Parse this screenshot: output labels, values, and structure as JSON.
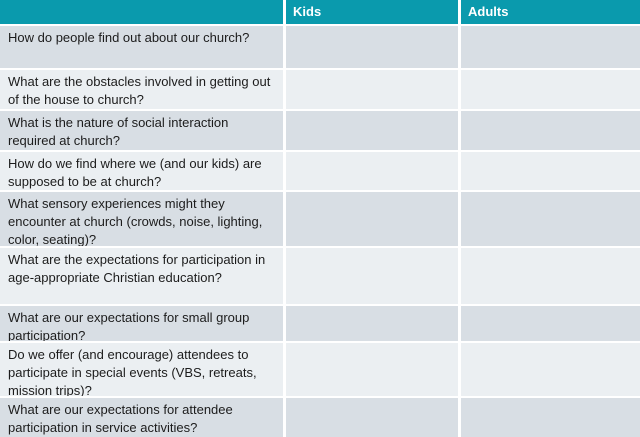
{
  "table": {
    "columns": [
      {
        "label": ""
      },
      {
        "label": "Kids"
      },
      {
        "label": "Adults"
      }
    ],
    "rows": [
      {
        "question": "How do people find out about our church?",
        "kids": "",
        "adults": ""
      },
      {
        "question": "What are the obstacles involved in getting out of the house to church?",
        "kids": "",
        "adults": ""
      },
      {
        "question": "What is the nature of social interaction required at church?",
        "kids": "",
        "adults": ""
      },
      {
        "question": "How do we find where we (and our kids) are supposed to be at church?",
        "kids": "",
        "adults": ""
      },
      {
        "question": "What sensory experiences might they encounter at church (crowds, noise, lighting, color, seating)?",
        "kids": "",
        "adults": ""
      },
      {
        "question": "What are the expectations for participation in age-appropriate Christian education?",
        "kids": "",
        "adults": ""
      },
      {
        "question": "What are our expectations for small group participation?",
        "kids": "",
        "adults": ""
      },
      {
        "question": "Do we offer (and encourage) attendees to participate in special events (VBS, retreats, mission trips)?",
        "kids": "",
        "adults": ""
      },
      {
        "question": "What are our expectations for attendee participation in service activities?",
        "kids": "",
        "adults": ""
      }
    ]
  },
  "colors": {
    "header_bg": "#0a9aad",
    "row_odd_bg": "#d8dee4",
    "row_even_bg": "#ebeff2",
    "header_text": "#ffffff",
    "body_text": "#1c1c1c",
    "separator": "#ffffff"
  }
}
